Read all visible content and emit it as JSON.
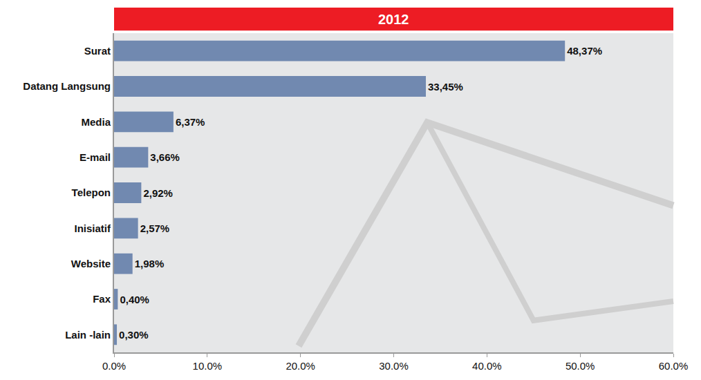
{
  "chart_data": {
    "type": "bar",
    "orientation": "horizontal",
    "title": "2012",
    "categories": [
      "Surat",
      "Datang Langsung",
      "Media",
      "E-mail",
      "Telepon",
      "Inisiatif",
      "Website",
      "Fax",
      "Lain -lain"
    ],
    "values": [
      48.37,
      33.45,
      6.37,
      3.66,
      2.92,
      2.57,
      1.98,
      0.4,
      0.3
    ],
    "value_labels": [
      "48,37%",
      "33,45%",
      "6,37%",
      "3,66%",
      "2,92%",
      "2,57%",
      "1,98%",
      "0,40%",
      "0,30%"
    ],
    "color": "#7189b0",
    "data_labels": true,
    "xlim": [
      0,
      60
    ],
    "xticks": [
      {
        "value": 0,
        "label": "0.0%"
      },
      {
        "value": 10,
        "label": "10.0%"
      },
      {
        "value": 20,
        "label": "20.0%"
      },
      {
        "value": 30,
        "label": "30.0%"
      },
      {
        "value": 40,
        "label": "40.0%"
      },
      {
        "value": 50,
        "label": "50.0%"
      },
      {
        "value": 60,
        "label": "60.0%"
      }
    ],
    "grid": false
  }
}
